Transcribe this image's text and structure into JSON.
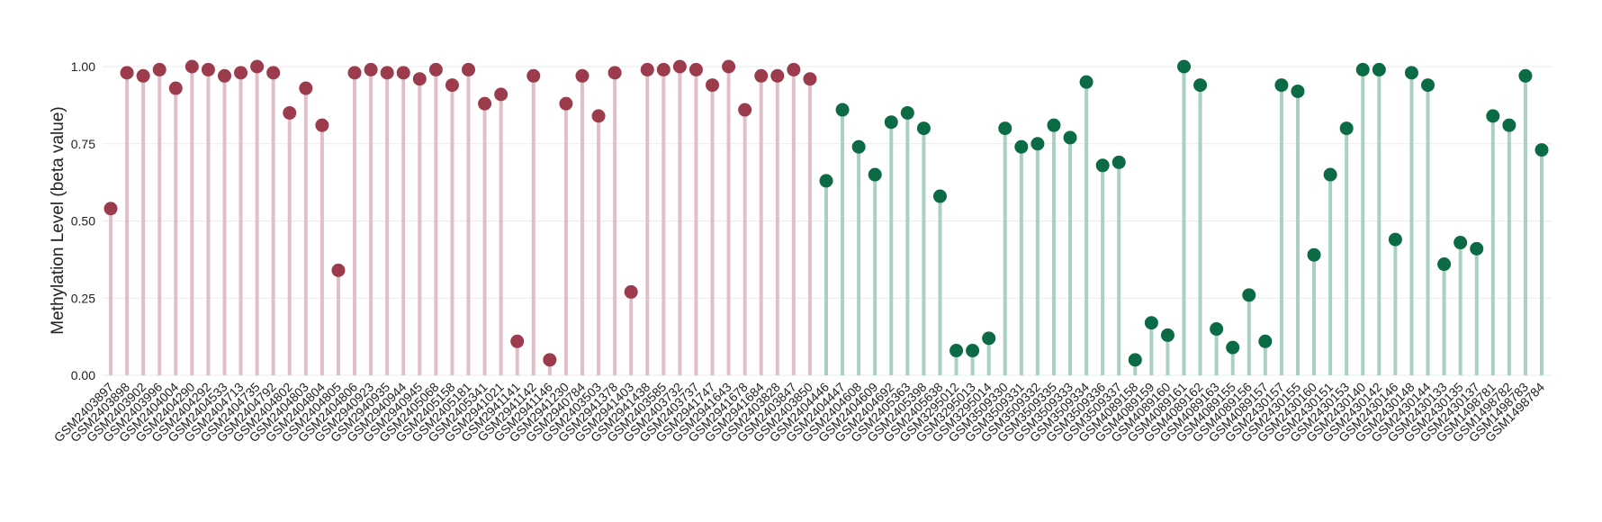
{
  "chart_data": {
    "type": "lollipop",
    "y_label": "Methylation Level (beta value)",
    "categories": [
      "GSM2403897",
      "GSM2403898",
      "GSM2403902",
      "GSM2403996",
      "GSM2404004",
      "GSM2404290",
      "GSM2404292",
      "GSM2404533",
      "GSM2404713",
      "GSM2404735",
      "GSM2404792",
      "GSM2404802",
      "GSM2404803",
      "GSM2404804",
      "GSM2404805",
      "GSM2404806",
      "GSM2940923",
      "GSM2940935",
      "GSM2940944",
      "GSM2940945",
      "GSM2405068",
      "GSM2405158",
      "GSM2405181",
      "GSM2405341",
      "GSM2941021",
      "GSM2941141",
      "GSM2941142",
      "GSM2941146",
      "GSM2941230",
      "GSM2940784",
      "GSM2403503",
      "GSM2941378",
      "GSM2941403",
      "GSM2941438",
      "GSM2403585",
      "GSM2403732",
      "GSM2403737",
      "GSM2941747",
      "GSM2941643",
      "GSM2941678",
      "GSM2941684",
      "GSM2403828",
      "GSM2403847",
      "GSM2403850",
      "GSM2404446",
      "GSM2404447",
      "GSM2404608",
      "GSM2404609",
      "GSM2404692",
      "GSM2405363",
      "GSM2405398",
      "GSM2405638",
      "GSM3295012",
      "GSM3295013",
      "GSM3295014",
      "GSM3509330",
      "GSM3509331",
      "GSM3509332",
      "GSM3509335",
      "GSM3509333",
      "GSM3509334",
      "GSM3509336",
      "GSM3509337",
      "GSM4089158",
      "GSM4089159",
      "GSM4089160",
      "GSM4089161",
      "GSM4089162",
      "GSM4089163",
      "GSM4089155",
      "GSM4089156",
      "GSM4089157",
      "GSM2430157",
      "GSM2430155",
      "GSM2430160",
      "GSM2430151",
      "GSM2430153",
      "GSM2430140",
      "GSM2430142",
      "GSM2430146",
      "GSM2430148",
      "GSM2430144",
      "GSM2430133",
      "GSM2430135",
      "GSM2430137",
      "GSM1498781",
      "GSM1498782",
      "GSM1498783",
      "GSM1498784"
    ],
    "series": [
      {
        "color": "#9b3b4c",
        "stem_color": "#dfc0c8",
        "values": [
          0.54,
          0.98,
          0.97,
          0.99,
          0.93,
          1.0,
          0.99,
          0.97,
          0.98,
          1.0,
          0.98,
          0.85,
          0.93,
          0.81,
          0.34,
          0.98,
          0.99,
          0.98,
          0.98,
          0.96,
          0.99,
          0.94,
          0.99,
          0.88,
          0.91,
          0.11,
          0.97,
          0.05,
          0.88,
          0.97,
          0.84,
          0.98,
          0.27,
          0.99,
          0.99,
          1.0,
          0.99,
          0.94,
          1.0,
          0.86,
          0.97,
          0.97,
          0.99,
          0.96,
          null,
          null,
          null,
          null,
          null,
          null,
          null,
          null,
          null,
          null,
          null,
          null,
          null,
          null,
          null,
          null,
          null,
          null,
          null,
          null,
          null,
          null,
          null,
          null,
          null,
          null,
          null,
          null,
          null,
          null,
          null,
          null,
          null,
          null,
          null,
          null,
          null,
          null,
          null,
          null,
          null,
          null,
          null,
          null,
          null
        ]
      },
      {
        "color": "#0b6b45",
        "stem_color": "#aad0c2",
        "values": [
          null,
          null,
          null,
          null,
          null,
          null,
          null,
          null,
          null,
          null,
          null,
          null,
          null,
          null,
          null,
          null,
          null,
          null,
          null,
          null,
          null,
          null,
          null,
          null,
          null,
          null,
          null,
          null,
          null,
          null,
          null,
          null,
          null,
          null,
          null,
          null,
          null,
          null,
          null,
          null,
          null,
          null,
          null,
          null,
          0.63,
          0.86,
          0.74,
          0.65,
          0.82,
          0.85,
          0.8,
          0.58,
          0.08,
          0.08,
          0.12,
          0.8,
          0.74,
          0.75,
          0.81,
          0.77,
          0.95,
          0.68,
          0.69,
          0.05,
          0.17,
          0.13,
          1.0,
          0.94,
          0.15,
          0.09,
          0.26,
          0.11,
          0.94,
          0.92,
          0.39,
          0.65,
          0.8,
          0.99,
          0.99,
          0.44,
          0.98,
          0.94,
          0.36,
          0.43,
          0.41,
          0.84,
          0.81,
          0.97,
          0.73
        ]
      }
    ],
    "ylim": [
      0,
      1.05
    ],
    "yticks": [
      {
        "value": 0,
        "label": "0.00"
      },
      {
        "value": 0.25,
        "label": "0.25"
      },
      {
        "value": 0.5,
        "label": "0.50"
      },
      {
        "value": 0.75,
        "label": "0.75"
      },
      {
        "value": 1,
        "label": "1.00"
      }
    ],
    "grid": true
  }
}
